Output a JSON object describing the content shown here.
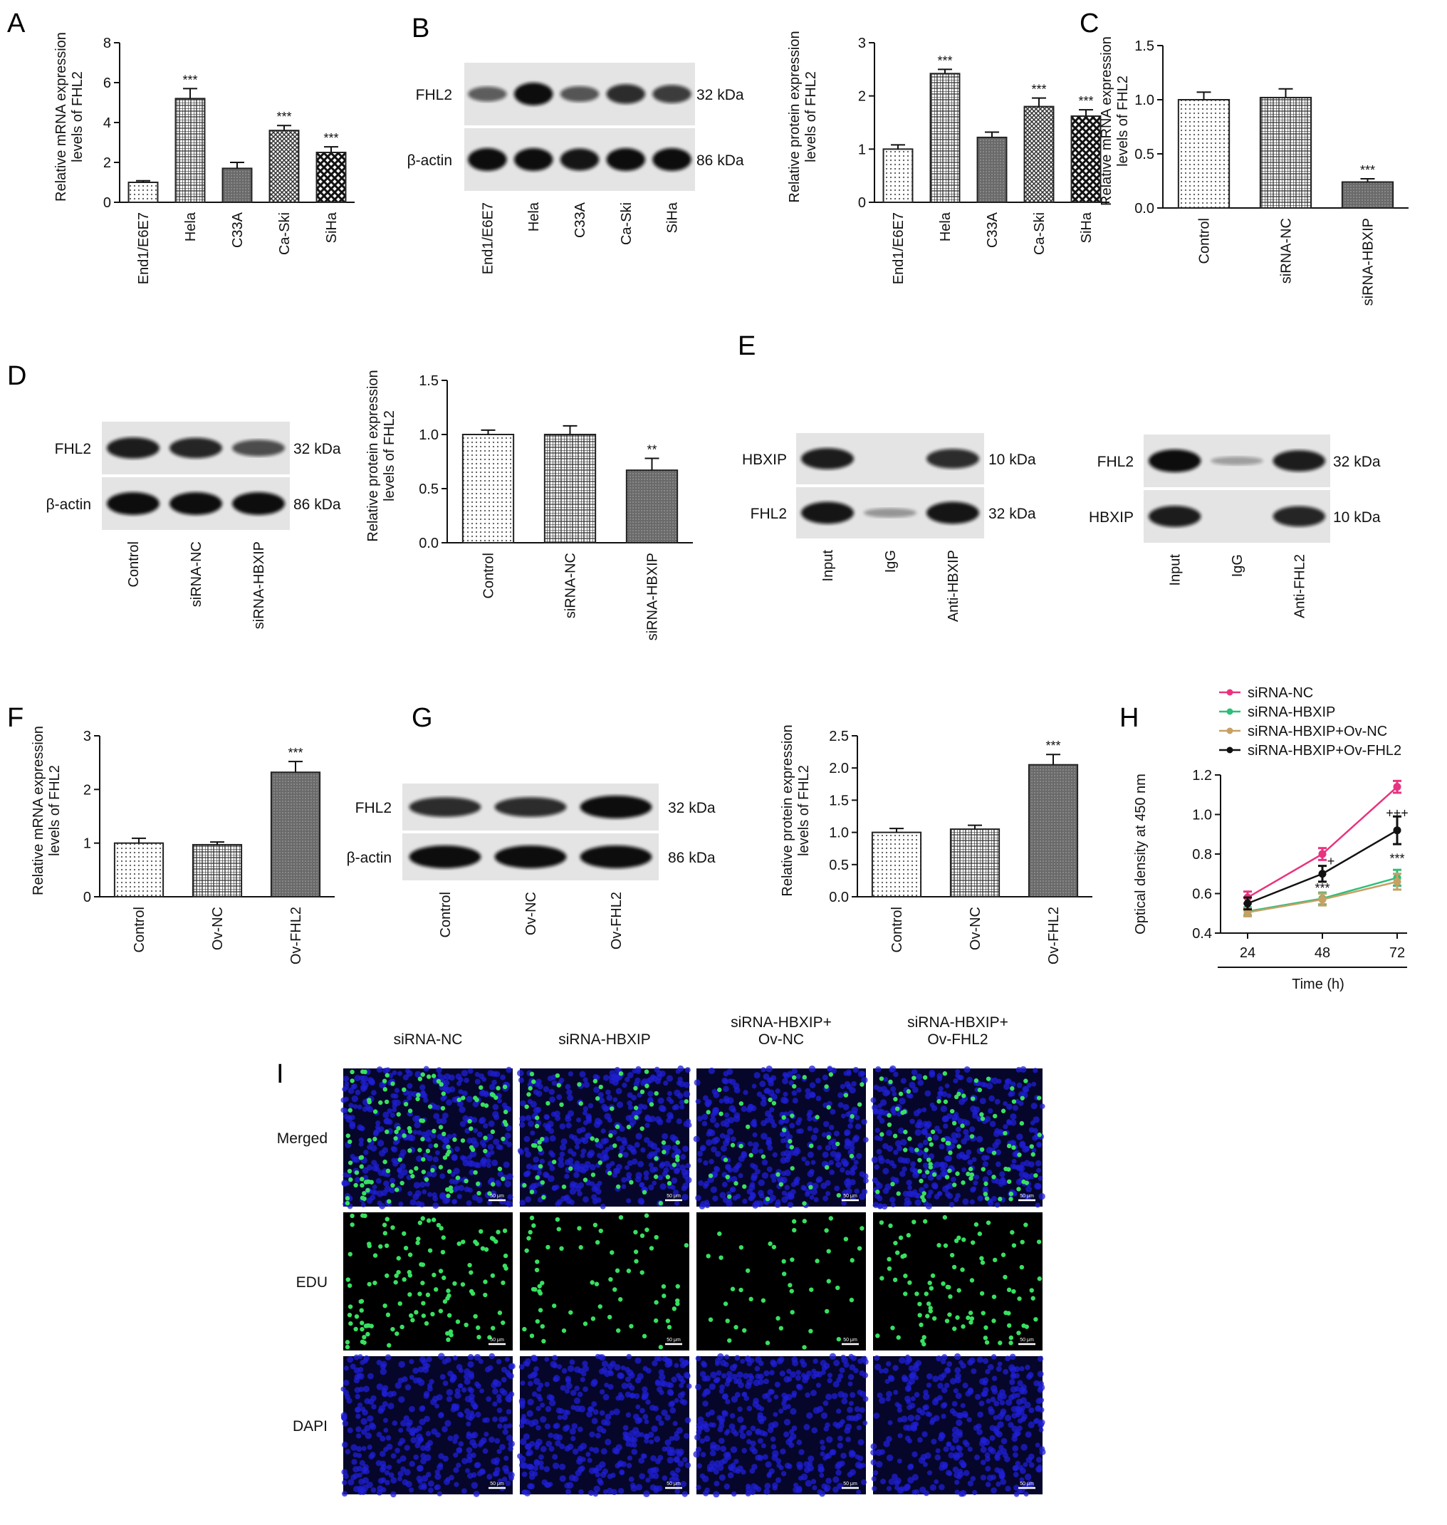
{
  "figure": {
    "panel_labels": [
      "A",
      "B",
      "C",
      "D",
      "E",
      "F",
      "G",
      "H",
      "I"
    ],
    "colors": {
      "bar_edge": "#222222",
      "blot_bg": "#e4e4e4",
      "band": "#111111",
      "nuclei_blue": "#1f1fd6",
      "edu_green": "#38e060",
      "siRNA_NC": "#e8337f",
      "siRNA_HBXIP": "#2cbf7a",
      "siRNA_HBXIP_OvNC": "#c8a064",
      "siRNA_HBXIP_OvFHL2": "#111111"
    },
    "bar_patterns": {
      "A": [
        "dots",
        "checker",
        "dense",
        "hatch",
        "bold"
      ],
      "B": [
        "dots",
        "checker",
        "dense",
        "hatch",
        "bold"
      ],
      "C": [
        "dots",
        "checker",
        "dense"
      ],
      "D": [
        "dots",
        "checker",
        "dense"
      ],
      "F": [
        "dots",
        "checker",
        "dense"
      ],
      "G": [
        "dots",
        "checker",
        "dense"
      ]
    },
    "blots": {
      "B": {
        "rows": [
          {
            "label": "FHL2",
            "kda": "32 kDa",
            "intensity": [
              0.5,
              1.0,
              0.55,
              0.8,
              0.7
            ]
          },
          {
            "label": "β-actin",
            "kda": "86 kDa",
            "intensity": [
              1.0,
              1.0,
              0.95,
              1.0,
              1.0
            ]
          }
        ],
        "lanes": [
          "End1/E6E7",
          "Hela",
          "C33A",
          "Ca-Ski",
          "SiHa"
        ]
      },
      "D": {
        "rows": [
          {
            "label": "FHL2",
            "kda": "32 kDa",
            "intensity": [
              0.9,
              0.85,
              0.6
            ]
          },
          {
            "label": "β-actin",
            "kda": "86 kDa",
            "intensity": [
              1.0,
              1.0,
              1.0
            ]
          }
        ],
        "lanes": [
          "Control",
          "siRNA-NC",
          "siRNA-HBXIP"
        ]
      },
      "E1": {
        "rows": [
          {
            "label": "HBXIP",
            "kda": "10 kDa",
            "intensity": [
              0.9,
              0.0,
              0.8
            ]
          },
          {
            "label": "FHL2",
            "kda": "32 kDa",
            "intensity": [
              0.95,
              0.15,
              0.95
            ]
          }
        ],
        "lanes": [
          "Input",
          "IgG",
          "Anti-HBXIP"
        ]
      },
      "E2": {
        "rows": [
          {
            "label": "FHL2",
            "kda": "32 kDa",
            "intensity": [
              1.0,
              0.1,
              0.9
            ]
          },
          {
            "label": "HBXIP",
            "kda": "10 kDa",
            "intensity": [
              0.9,
              0.0,
              0.85
            ]
          }
        ],
        "lanes": [
          "Input",
          "IgG",
          "Anti-FHL2"
        ]
      },
      "G": {
        "rows": [
          {
            "label": "FHL2",
            "kda": "32 kDa",
            "intensity": [
              0.8,
              0.8,
              1.0
            ]
          },
          {
            "label": "β-actin",
            "kda": "86 kDa",
            "intensity": [
              1.0,
              1.0,
              1.0
            ]
          }
        ],
        "lanes": [
          "Control",
          "Ov-NC",
          "Ov-FHL2"
        ]
      }
    },
    "microscopy": {
      "columns": [
        "siRNA-NC",
        "siRNA-HBXIP",
        "siRNA-HBXIP+\nOv-NC",
        "siRNA-HBXIP+\nOv-FHL2"
      ],
      "rows": [
        "Merged",
        "EDU",
        "DAPI"
      ],
      "edu_density": [
        0.85,
        0.45,
        0.3,
        0.65
      ],
      "scale_bar": "50 μm"
    }
  },
  "chart_data": [
    {
      "panel": "A",
      "type": "bar",
      "categories": [
        "End1/E6E7",
        "Hela",
        "C33A",
        "Ca-Ski",
        "SiHa"
      ],
      "values": [
        1.0,
        5.2,
        1.7,
        3.6,
        2.5
      ],
      "errors": [
        0.08,
        0.5,
        0.3,
        0.25,
        0.28
      ],
      "significance": [
        "",
        "***",
        "",
        "***",
        "***"
      ],
      "ylabel": "Relative mRNA expression\nlevels of FHL2",
      "ylim": [
        0,
        8
      ],
      "yticks": [
        "0",
        "2",
        "4",
        "6",
        "8"
      ]
    },
    {
      "panel": "B",
      "type": "bar",
      "categories": [
        "End1/E6E7",
        "Hela",
        "C33A",
        "Ca-Ski",
        "SiHa"
      ],
      "values": [
        1.0,
        2.42,
        1.22,
        1.8,
        1.62
      ],
      "errors": [
        0.08,
        0.08,
        0.1,
        0.16,
        0.12
      ],
      "significance": [
        "",
        "***",
        "",
        "***",
        "***"
      ],
      "ylabel": "Relative protein expression\nlevels of FHL2",
      "ylim": [
        0,
        3
      ],
      "yticks": [
        "0",
        "1",
        "2",
        "3"
      ]
    },
    {
      "panel": "C",
      "type": "bar",
      "categories": [
        "Control",
        "siRNA-NC",
        "siRNA-HBXIP"
      ],
      "values": [
        1.0,
        1.02,
        0.24
      ],
      "errors": [
        0.07,
        0.08,
        0.03
      ],
      "significance": [
        "",
        "",
        "***"
      ],
      "ylabel": "Relative mRNA expression\nlevels of FHL2",
      "ylim": [
        0,
        1.5
      ],
      "yticks": [
        "0.0",
        "0.5",
        "1.0",
        "1.5"
      ]
    },
    {
      "panel": "D",
      "type": "bar",
      "categories": [
        "Control",
        "siRNA-NC",
        "siRNA-HBXIP"
      ],
      "values": [
        1.0,
        1.0,
        0.67
      ],
      "errors": [
        0.04,
        0.08,
        0.11
      ],
      "significance": [
        "",
        "",
        "**"
      ],
      "ylabel": "Relative protein expression\nlevels of FHL2",
      "ylim": [
        0,
        1.5
      ],
      "yticks": [
        "0.0",
        "0.5",
        "1.0",
        "1.5"
      ]
    },
    {
      "panel": "F",
      "type": "bar",
      "categories": [
        "Control",
        "Ov-NC",
        "Ov-FHL2"
      ],
      "values": [
        1.0,
        0.97,
        2.32
      ],
      "errors": [
        0.09,
        0.05,
        0.2
      ],
      "significance": [
        "",
        "",
        "***"
      ],
      "ylabel": "Relative mRNA expression\nlevels of FHL2",
      "ylim": [
        0,
        3
      ],
      "yticks": [
        "0",
        "1",
        "2",
        "3"
      ]
    },
    {
      "panel": "G",
      "type": "bar",
      "categories": [
        "Control",
        "Ov-NC",
        "Ov-FHL2"
      ],
      "values": [
        1.0,
        1.05,
        2.05
      ],
      "errors": [
        0.06,
        0.06,
        0.16
      ],
      "significance": [
        "",
        "",
        "***"
      ],
      "ylabel": "Relative protein expression\nlevels of FHL2",
      "ylim": [
        0,
        2.5
      ],
      "yticks": [
        "0.0",
        "0.5",
        "1.0",
        "1.5",
        "2.0",
        "2.5"
      ]
    },
    {
      "panel": "H",
      "type": "line",
      "x": [
        24,
        48,
        72
      ],
      "xticks": [
        "24",
        "48",
        "72"
      ],
      "xlabel": "Time (h)",
      "ylabel": "Optical density at 450 nm",
      "ylim": [
        0.4,
        1.2
      ],
      "yticks": [
        "0.4",
        "0.6",
        "0.8",
        "1.0",
        "1.2"
      ],
      "series": [
        {
          "name": "siRNA-NC",
          "values": [
            0.58,
            0.8,
            1.14
          ],
          "errors": [
            0.03,
            0.03,
            0.03
          ]
        },
        {
          "name": "siRNA-HBXIP",
          "values": [
            0.51,
            0.575,
            0.68
          ],
          "errors": [
            0.02,
            0.03,
            0.04
          ]
        },
        {
          "name": "siRNA-HBXIP+Ov-NC",
          "values": [
            0.505,
            0.57,
            0.66
          ],
          "errors": [
            0.02,
            0.03,
            0.04
          ]
        },
        {
          "name": "siRNA-HBXIP+Ov-FHL2",
          "values": [
            0.55,
            0.7,
            0.92
          ],
          "errors": [
            0.03,
            0.04,
            0.07
          ]
        }
      ],
      "annotations": [
        "+",
        "***",
        "+++",
        "***"
      ],
      "legend": "top-right"
    }
  ]
}
